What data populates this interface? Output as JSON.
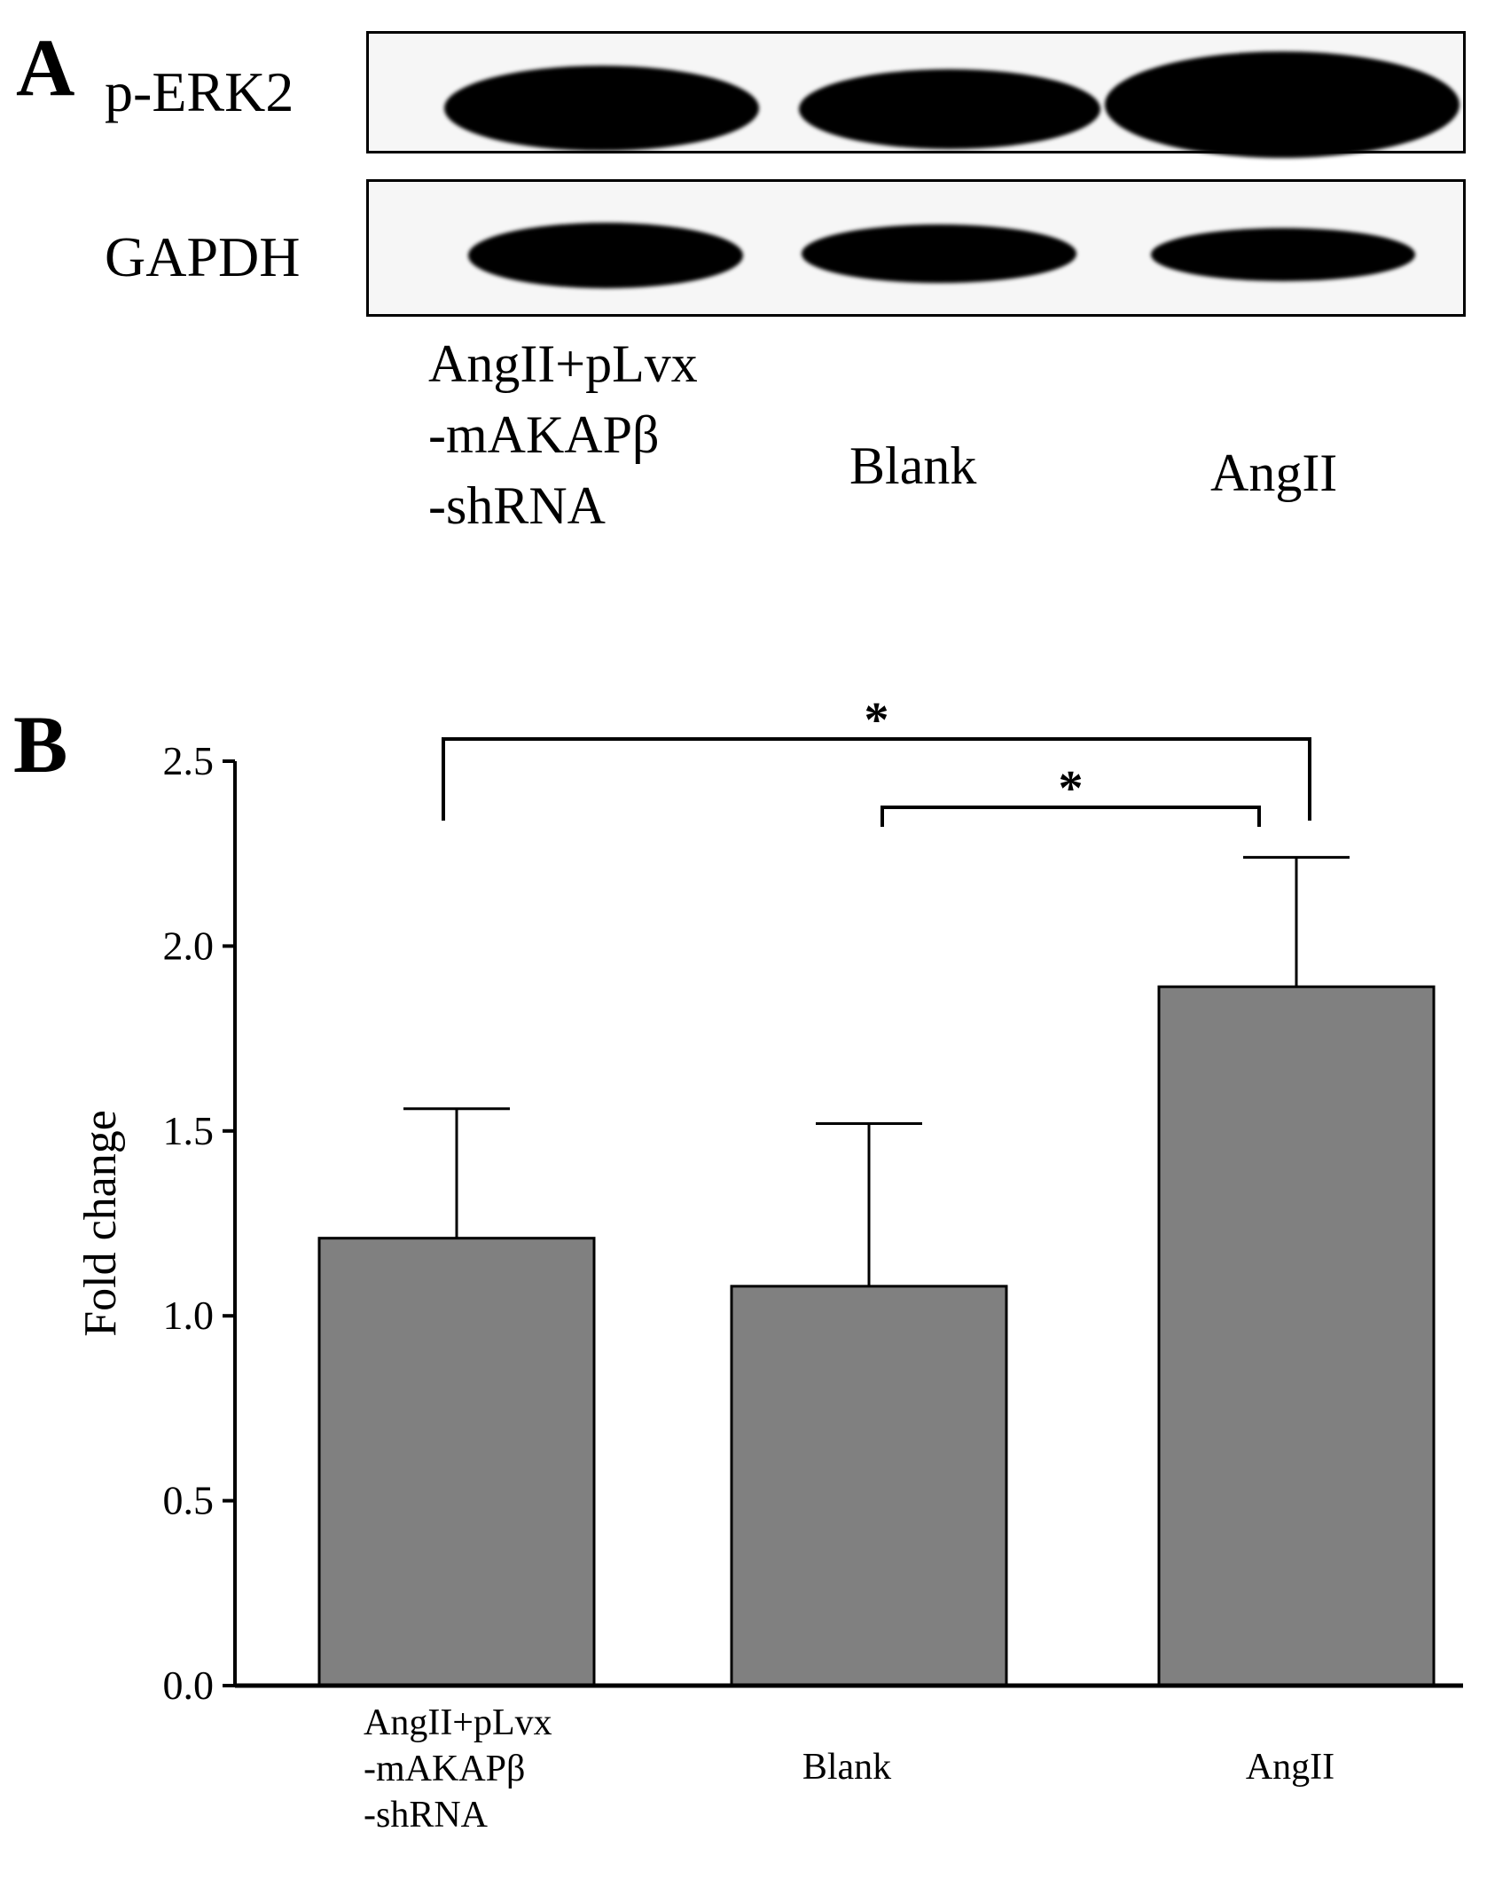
{
  "panel_a": {
    "letter": "A",
    "blot_rows": [
      {
        "label": "p-ERK2",
        "band_intensities": [
          1.0,
          0.92,
          1.12
        ]
      },
      {
        "label": "GAPDH",
        "band_intensities": [
          0.9,
          0.85,
          0.8
        ]
      }
    ],
    "lanes": [
      {
        "lines": [
          "AngII+pLvx",
          "-mAKAPβ",
          "-shRNA"
        ]
      },
      {
        "lines": [
          "Blank"
        ]
      },
      {
        "lines": [
          "AngII"
        ]
      }
    ]
  },
  "panel_b": {
    "letter": "B"
  },
  "chart_data": {
    "type": "bar",
    "title": "",
    "xlabel": "",
    "ylabel": "Fold change",
    "ylim": [
      0,
      2.5
    ],
    "yticks": [
      "0.0",
      "0.5",
      "1.0",
      "1.5",
      "2.0",
      "2.5"
    ],
    "categories": [
      [
        "AngII+pLvx",
        "-mAKAPβ",
        "-shRNA"
      ],
      [
        "Blank"
      ],
      [
        "AngII"
      ]
    ],
    "values": [
      1.21,
      1.08,
      1.89
    ],
    "errors": [
      0.35,
      0.44,
      0.35
    ],
    "bar_color": "#808080",
    "significance": [
      {
        "from": 0,
        "to": 2,
        "label": "*"
      },
      {
        "from": 1,
        "to": 2,
        "label": "*"
      }
    ],
    "grid": false,
    "legend": "none"
  }
}
